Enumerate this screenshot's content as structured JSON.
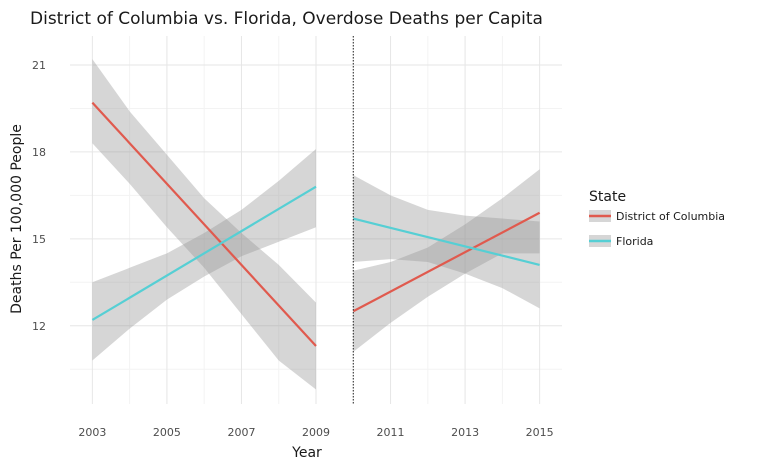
{
  "chart_data": {
    "type": "line",
    "title": "District of Columbia vs. Florida, Overdose Deaths per Capita",
    "xlabel": "Year",
    "ylabel": "Deaths Per 100,000 People",
    "xlim": [
      2002.4,
      2015.6
    ],
    "ylim": [
      9.3,
      22.0
    ],
    "x_ticks": [
      2003,
      2005,
      2007,
      2009,
      2011,
      2013,
      2015
    ],
    "y_ticks": [
      12,
      15,
      18,
      21
    ],
    "grid": true,
    "cutoff_x": 2010,
    "legend": {
      "title": "State",
      "position": "right",
      "entries": [
        "District of Columbia",
        "Florida"
      ]
    },
    "series": [
      {
        "name": "District of Columbia",
        "color": "#e05a4e",
        "segments": [
          {
            "x": [
              2003,
              2009
            ],
            "y": [
              19.7,
              11.3
            ],
            "band": {
              "x": [
                2003,
                2004,
                2005,
                2006,
                2007,
                2008,
                2009
              ],
              "lower": [
                18.3,
                16.9,
                15.4,
                14.0,
                12.4,
                10.8,
                9.8
              ],
              "upper": [
                21.2,
                19.4,
                17.9,
                16.4,
                15.2,
                14.1,
                12.8
              ]
            }
          },
          {
            "x": [
              2010,
              2015
            ],
            "y": [
              12.5,
              15.9
            ],
            "band": {
              "x": [
                2010,
                2011,
                2012,
                2013,
                2014,
                2015
              ],
              "lower": [
                11.1,
                12.1,
                13.0,
                13.8,
                14.5,
                14.5
              ],
              "upper": [
                13.9,
                14.2,
                14.7,
                15.5,
                16.4,
                17.4
              ]
            }
          }
        ]
      },
      {
        "name": "Florida",
        "color": "#56cfd4",
        "segments": [
          {
            "x": [
              2003,
              2009
            ],
            "y": [
              12.2,
              16.8
            ],
            "band": {
              "x": [
                2003,
                2004,
                2005,
                2006,
                2007,
                2008,
                2009
              ],
              "lower": [
                10.8,
                11.9,
                12.9,
                13.7,
                14.4,
                14.9,
                15.4
              ],
              "upper": [
                13.5,
                14.0,
                14.5,
                15.2,
                16.0,
                17.0,
                18.1
              ]
            }
          },
          {
            "x": [
              2010,
              2015
            ],
            "y": [
              15.7,
              14.1
            ],
            "band": {
              "x": [
                2010,
                2011,
                2012,
                2013,
                2014,
                2015
              ],
              "lower": [
                14.2,
                14.3,
                14.2,
                13.8,
                13.3,
                12.6
              ],
              "upper": [
                17.2,
                16.5,
                16.0,
                15.8,
                15.7,
                15.6
              ]
            }
          }
        ]
      }
    ]
  }
}
